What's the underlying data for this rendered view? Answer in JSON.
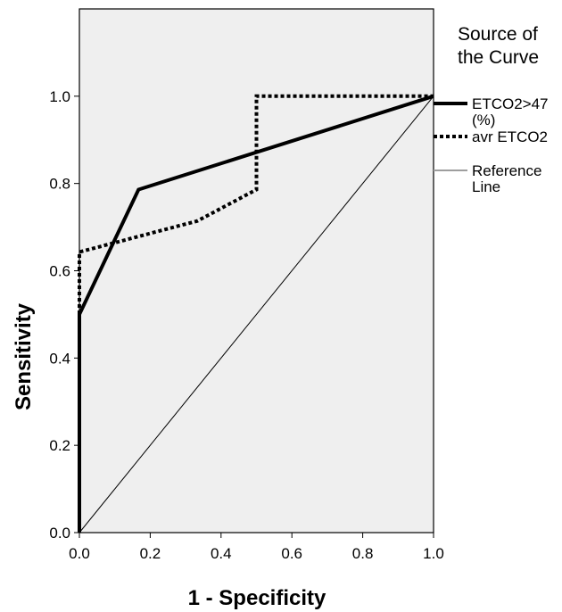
{
  "chart_data": {
    "type": "line",
    "xlabel": "1 - Specificity",
    "ylabel": "Sensitivity",
    "xlim": [
      0,
      1
    ],
    "ylim": [
      0,
      1.2
    ],
    "x_ticks": [
      "0.0",
      "0.2",
      "0.4",
      "0.6",
      "0.8",
      "1.0"
    ],
    "y_ticks": [
      "0.0",
      "0.2",
      "0.4",
      "0.6",
      "0.8",
      "1.0"
    ],
    "grid": false,
    "plot_background": "#efefef",
    "legend": {
      "title": "Source of the Curve",
      "title_lines": [
        "Source of",
        "the Curve"
      ],
      "placement": "right"
    },
    "series": [
      {
        "name": "ETCO2>47 (%)",
        "name_lines": [
          "ETCO2>47",
          "(%)"
        ],
        "style": "solid-thick",
        "color": "#000000",
        "x": [
          0.0,
          0.0,
          0.167,
          1.0
        ],
        "y": [
          0.0,
          0.5,
          0.786,
          1.0
        ]
      },
      {
        "name": "avr ETCO2",
        "name_lines": [
          "avr ETCO2"
        ],
        "style": "dotted-thick",
        "color": "#000000",
        "x": [
          0.0,
          0.0,
          0.0,
          0.333,
          0.5,
          0.5,
          1.0
        ],
        "y": [
          0.0,
          0.571,
          0.643,
          0.714,
          0.786,
          1.0,
          1.0
        ]
      },
      {
        "name": "Reference Line",
        "name_lines": [
          "Reference",
          "Line"
        ],
        "style": "thin",
        "color": "#000000",
        "legend_color": "#9e9e9e",
        "x": [
          0.0,
          1.0
        ],
        "y": [
          0.0,
          1.0
        ]
      }
    ]
  }
}
